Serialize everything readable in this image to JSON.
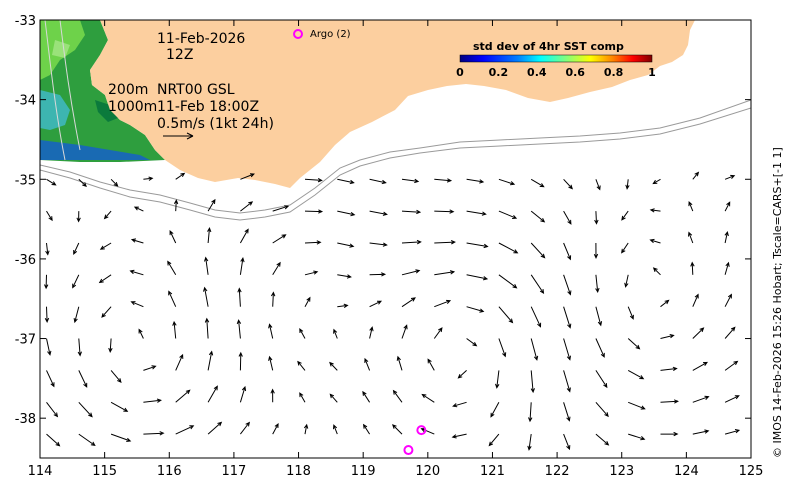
{
  "map": {
    "x_ticks": [
      "114",
      "115",
      "116",
      "117",
      "118",
      "119",
      "120",
      "121",
      "122",
      "123",
      "124",
      "125"
    ],
    "y_ticks": [
      "-33",
      "-34",
      "-35",
      "-36",
      "-37",
      "-38"
    ],
    "lon_range": [
      114,
      125
    ],
    "lat_range": [
      -38.5,
      -33
    ],
    "annotations": {
      "date": "11-Feb-2026",
      "hour": "12Z",
      "depth1": "200m",
      "depth2": "1000m",
      "product": "NRT00 GSL",
      "timestamp": "11-Feb 18:00Z",
      "scale": "0.5m/s (1kt 24h)"
    },
    "argo_label": "Argo (2)",
    "argo_floats": [
      {
        "lon": 119.9,
        "lat": -38.15
      },
      {
        "lon": 119.7,
        "lat": -38.4
      }
    ],
    "colorbar": {
      "title": "std dev of 4hr SST comp",
      "ticks": [
        "0",
        "0.2",
        "0.4",
        "0.6",
        "0.8",
        "1"
      ],
      "colors": [
        "#00007f",
        "#0000ff",
        "#007fff",
        "#00ffff",
        "#7fff7f",
        "#ffff00",
        "#ff7f00",
        "#ff0000",
        "#7f0000"
      ]
    },
    "credit": "© IMOS 14-Feb-2026 15:26 Hobart; Tscale=CARS+[-1 1]",
    "land_color": "#fccf9f",
    "argo_color": "#ff00ff"
  }
}
